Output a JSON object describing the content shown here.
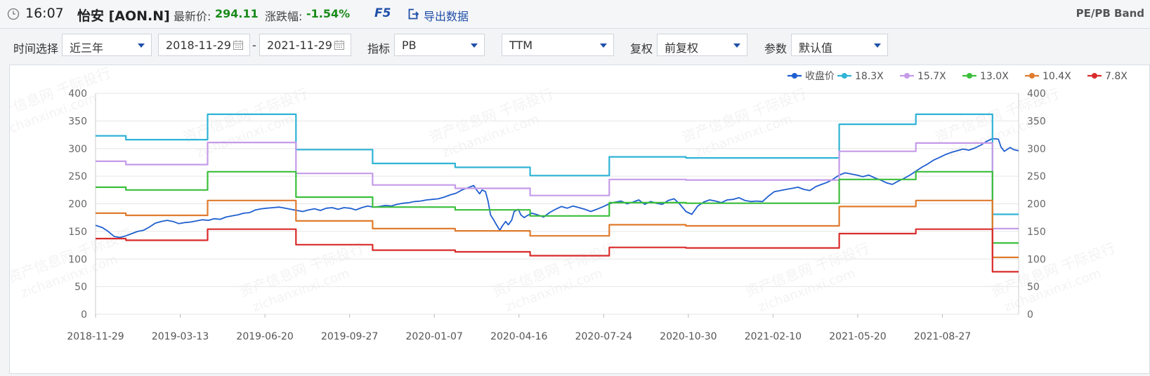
{
  "header": {
    "time": "16:07",
    "stock_name": "怡安 [AON.N]",
    "latest_price_label": "最新价:",
    "latest_price": "294.11",
    "change_label": "涨跌幅:",
    "change_pct": "-1.54%",
    "f5_label": "F5",
    "export_label": "导出数据",
    "module_title": "PE/PB Band"
  },
  "toolbar": {
    "time_select_label": "时间选择",
    "time_select_value": "近三年",
    "start_date": "2018-11-29",
    "date_separator": "-",
    "end_date": "2021-11-29",
    "indicator_label": "指标",
    "indicator_value": "PB",
    "ttm_value": "TTM",
    "adjust_label": "复权",
    "adjust_value": "前复权",
    "param_label": "参数",
    "param_value": "默认值"
  },
  "chart_data": {
    "type": "line",
    "title": "",
    "xlabel": "",
    "ylabel": "",
    "ylim": [
      0,
      400
    ],
    "y_ticks": [
      0,
      50,
      100,
      150,
      200,
      250,
      300,
      350,
      400
    ],
    "x_range": [
      "2018-11-29",
      "2021-11-29"
    ],
    "x_tick_labels": [
      "2018-11-29",
      "2019-03-13",
      "2019-06-20",
      "2019-09-27",
      "2020-01-07",
      "2020-04-16",
      "2020-07-24",
      "2020-10-30",
      "2021-02-10",
      "2021-05-20",
      "2021-08-27"
    ],
    "dual_y_axis": true,
    "grid": "horizontal",
    "legend_position": "top-right",
    "series": [
      {
        "name": "收盘价",
        "color": "#1f5fd0",
        "points": [
          [
            "2018-11-29",
            161
          ],
          [
            "2018-12-07",
            157
          ],
          [
            "2018-12-14",
            150
          ],
          [
            "2018-12-21",
            141
          ],
          [
            "2018-12-28",
            139
          ],
          [
            "2019-01-04",
            142
          ],
          [
            "2019-01-11",
            146
          ],
          [
            "2019-01-18",
            150
          ],
          [
            "2019-01-25",
            152
          ],
          [
            "2019-02-01",
            158
          ],
          [
            "2019-02-08",
            165
          ],
          [
            "2019-02-15",
            168
          ],
          [
            "2019-02-22",
            170
          ],
          [
            "2019-03-01",
            168
          ],
          [
            "2019-03-08",
            164
          ],
          [
            "2019-03-15",
            166
          ],
          [
            "2019-03-22",
            167
          ],
          [
            "2019-03-29",
            169
          ],
          [
            "2019-04-05",
            171
          ],
          [
            "2019-04-12",
            170
          ],
          [
            "2019-04-19",
            173
          ],
          [
            "2019-04-26",
            172
          ],
          [
            "2019-05-03",
            176
          ],
          [
            "2019-05-10",
            178
          ],
          [
            "2019-05-17",
            180
          ],
          [
            "2019-05-24",
            183
          ],
          [
            "2019-05-31",
            184
          ],
          [
            "2019-06-07",
            189
          ],
          [
            "2019-06-14",
            191
          ],
          [
            "2019-06-20",
            192
          ],
          [
            "2019-06-28",
            193
          ],
          [
            "2019-07-05",
            194
          ],
          [
            "2019-07-12",
            192
          ],
          [
            "2019-07-19",
            190
          ],
          [
            "2019-07-26",
            188
          ],
          [
            "2019-08-02",
            186
          ],
          [
            "2019-08-09",
            189
          ],
          [
            "2019-08-16",
            191
          ],
          [
            "2019-08-23",
            188
          ],
          [
            "2019-08-30",
            192
          ],
          [
            "2019-09-06",
            193
          ],
          [
            "2019-09-13",
            190
          ],
          [
            "2019-09-20",
            193
          ],
          [
            "2019-09-27",
            192
          ],
          [
            "2019-10-04",
            189
          ],
          [
            "2019-10-11",
            193
          ],
          [
            "2019-10-18",
            196
          ],
          [
            "2019-10-25",
            194
          ],
          [
            "2019-11-01",
            195
          ],
          [
            "2019-11-08",
            197
          ],
          [
            "2019-11-15",
            196
          ],
          [
            "2019-11-22",
            199
          ],
          [
            "2019-11-29",
            201
          ],
          [
            "2019-12-06",
            202
          ],
          [
            "2019-12-13",
            204
          ],
          [
            "2019-12-20",
            205
          ],
          [
            "2019-12-27",
            207
          ],
          [
            "2020-01-03",
            208
          ],
          [
            "2020-01-10",
            209
          ],
          [
            "2020-01-17",
            212
          ],
          [
            "2020-01-24",
            216
          ],
          [
            "2020-01-31",
            219
          ],
          [
            "2020-02-07",
            225
          ],
          [
            "2020-02-14",
            229
          ],
          [
            "2020-02-21",
            233
          ],
          [
            "2020-02-24",
            226
          ],
          [
            "2020-02-28",
            218
          ],
          [
            "2020-03-02",
            225
          ],
          [
            "2020-03-06",
            222
          ],
          [
            "2020-03-09",
            205
          ],
          [
            "2020-03-12",
            180
          ],
          [
            "2020-03-16",
            170
          ],
          [
            "2020-03-19",
            162
          ],
          [
            "2020-03-23",
            152
          ],
          [
            "2020-03-26",
            160
          ],
          [
            "2020-03-30",
            168
          ],
          [
            "2020-04-02",
            162
          ],
          [
            "2020-04-06",
            170
          ],
          [
            "2020-04-09",
            186
          ],
          [
            "2020-04-14",
            190
          ],
          [
            "2020-04-17",
            180
          ],
          [
            "2020-04-21",
            175
          ],
          [
            "2020-04-24",
            178
          ],
          [
            "2020-04-30",
            183
          ],
          [
            "2020-05-07",
            180
          ],
          [
            "2020-05-14",
            176
          ],
          [
            "2020-05-21",
            184
          ],
          [
            "2020-05-28",
            190
          ],
          [
            "2020-06-04",
            195
          ],
          [
            "2020-06-11",
            192
          ],
          [
            "2020-06-18",
            196
          ],
          [
            "2020-06-25",
            193
          ],
          [
            "2020-07-02",
            190
          ],
          [
            "2020-07-09",
            186
          ],
          [
            "2020-07-16",
            190
          ],
          [
            "2020-07-24",
            195
          ],
          [
            "2020-07-31",
            200
          ],
          [
            "2020-08-07",
            203
          ],
          [
            "2020-08-14",
            205
          ],
          [
            "2020-08-21",
            200
          ],
          [
            "2020-08-28",
            203
          ],
          [
            "2020-09-04",
            207
          ],
          [
            "2020-09-11",
            199
          ],
          [
            "2020-09-18",
            204
          ],
          [
            "2020-09-25",
            201
          ],
          [
            "2020-10-02",
            199
          ],
          [
            "2020-10-09",
            206
          ],
          [
            "2020-10-16",
            209
          ],
          [
            "2020-10-23",
            199
          ],
          [
            "2020-10-30",
            186
          ],
          [
            "2020-11-06",
            181
          ],
          [
            "2020-11-13",
            196
          ],
          [
            "2020-11-20",
            203
          ],
          [
            "2020-11-27",
            207
          ],
          [
            "2020-12-04",
            205
          ],
          [
            "2020-12-11",
            202
          ],
          [
            "2020-12-18",
            207
          ],
          [
            "2020-12-25",
            208
          ],
          [
            "2021-01-01",
            211
          ],
          [
            "2021-01-08",
            206
          ],
          [
            "2021-01-15",
            204
          ],
          [
            "2021-01-22",
            205
          ],
          [
            "2021-01-29",
            204
          ],
          [
            "2021-02-05",
            214
          ],
          [
            "2021-02-12",
            222
          ],
          [
            "2021-02-19",
            224
          ],
          [
            "2021-02-26",
            226
          ],
          [
            "2021-03-05",
            228
          ],
          [
            "2021-03-12",
            230
          ],
          [
            "2021-03-19",
            226
          ],
          [
            "2021-03-26",
            224
          ],
          [
            "2021-04-02",
            231
          ],
          [
            "2021-04-09",
            235
          ],
          [
            "2021-04-16",
            239
          ],
          [
            "2021-04-23",
            245
          ],
          [
            "2021-04-30",
            252
          ],
          [
            "2021-05-07",
            256
          ],
          [
            "2021-05-14",
            254
          ],
          [
            "2021-05-21",
            252
          ],
          [
            "2021-05-28",
            249
          ],
          [
            "2021-06-04",
            252
          ],
          [
            "2021-06-11",
            247
          ],
          [
            "2021-06-18",
            243
          ],
          [
            "2021-06-25",
            238
          ],
          [
            "2021-07-02",
            235
          ],
          [
            "2021-07-09",
            241
          ],
          [
            "2021-07-16",
            246
          ],
          [
            "2021-07-23",
            252
          ],
          [
            "2021-07-30",
            259
          ],
          [
            "2021-08-06",
            266
          ],
          [
            "2021-08-13",
            272
          ],
          [
            "2021-08-20",
            279
          ],
          [
            "2021-08-27",
            284
          ],
          [
            "2021-09-03",
            289
          ],
          [
            "2021-09-10",
            293
          ],
          [
            "2021-09-17",
            296
          ],
          [
            "2021-09-24",
            299
          ],
          [
            "2021-10-01",
            297
          ],
          [
            "2021-10-08",
            301
          ],
          [
            "2021-10-15",
            306
          ],
          [
            "2021-10-22",
            313
          ],
          [
            "2021-10-29",
            318
          ],
          [
            "2021-11-05",
            317
          ],
          [
            "2021-11-08",
            303
          ],
          [
            "2021-11-12",
            295
          ],
          [
            "2021-11-16",
            299
          ],
          [
            "2021-11-19",
            302
          ],
          [
            "2021-11-23",
            298
          ],
          [
            "2021-11-29",
            296
          ]
        ]
      },
      {
        "name": "18.3X",
        "color": "#2fb3d6",
        "step": true,
        "points": [
          [
            "2018-11-29",
            323
          ],
          [
            "2019-01-04",
            316
          ],
          [
            "2019-04-11",
            362
          ],
          [
            "2019-07-25",
            298
          ],
          [
            "2019-10-24",
            273
          ],
          [
            "2020-01-30",
            266
          ],
          [
            "2020-04-28",
            251
          ],
          [
            "2020-07-31",
            285
          ],
          [
            "2020-10-30",
            283
          ],
          [
            "2021-02-05",
            283
          ],
          [
            "2021-04-30",
            344
          ],
          [
            "2021-07-30",
            362
          ],
          [
            "2021-10-29",
            181
          ],
          [
            "2021-11-29",
            181
          ]
        ]
      },
      {
        "name": "15.7X",
        "color": "#c59be8",
        "step": true,
        "points": [
          [
            "2018-11-29",
            277
          ],
          [
            "2019-01-04",
            271
          ],
          [
            "2019-04-11",
            311
          ],
          [
            "2019-07-25",
            255
          ],
          [
            "2019-10-24",
            234
          ],
          [
            "2020-01-30",
            228
          ],
          [
            "2020-04-28",
            215
          ],
          [
            "2020-07-31",
            244
          ],
          [
            "2020-10-30",
            243
          ],
          [
            "2021-02-05",
            243
          ],
          [
            "2021-04-30",
            295
          ],
          [
            "2021-07-30",
            310
          ],
          [
            "2021-10-29",
            155
          ],
          [
            "2021-11-29",
            155
          ]
        ]
      },
      {
        "name": "13.0X",
        "color": "#3bbf3b",
        "step": true,
        "points": [
          [
            "2018-11-29",
            230
          ],
          [
            "2019-01-04",
            225
          ],
          [
            "2019-04-11",
            258
          ],
          [
            "2019-07-25",
            212
          ],
          [
            "2019-10-24",
            194
          ],
          [
            "2020-01-30",
            189
          ],
          [
            "2020-04-28",
            178
          ],
          [
            "2020-07-31",
            202
          ],
          [
            "2020-10-30",
            201
          ],
          [
            "2021-02-05",
            201
          ],
          [
            "2021-04-30",
            244
          ],
          [
            "2021-07-30",
            258
          ],
          [
            "2021-10-29",
            129
          ],
          [
            "2021-11-29",
            129
          ]
        ]
      },
      {
        "name": "10.4X",
        "color": "#e07b2e",
        "step": true,
        "points": [
          [
            "2018-11-29",
            183
          ],
          [
            "2019-01-04",
            179
          ],
          [
            "2019-04-11",
            206
          ],
          [
            "2019-07-25",
            169
          ],
          [
            "2019-10-24",
            155
          ],
          [
            "2020-01-30",
            151
          ],
          [
            "2020-04-28",
            142
          ],
          [
            "2020-07-31",
            162
          ],
          [
            "2020-10-30",
            160
          ],
          [
            "2021-02-05",
            160
          ],
          [
            "2021-04-30",
            195
          ],
          [
            "2021-07-30",
            206
          ],
          [
            "2021-10-29",
            103
          ],
          [
            "2021-11-29",
            103
          ]
        ]
      },
      {
        "name": "7.8X",
        "color": "#d92b2b",
        "step": true,
        "points": [
          [
            "2018-11-29",
            137
          ],
          [
            "2019-01-04",
            134
          ],
          [
            "2019-04-11",
            154
          ],
          [
            "2019-07-25",
            126
          ],
          [
            "2019-10-24",
            116
          ],
          [
            "2020-01-30",
            113
          ],
          [
            "2020-04-28",
            106
          ],
          [
            "2020-07-31",
            121
          ],
          [
            "2020-10-30",
            120
          ],
          [
            "2021-02-05",
            120
          ],
          [
            "2021-04-30",
            146
          ],
          [
            "2021-07-30",
            154
          ],
          [
            "2021-10-29",
            77
          ],
          [
            "2021-11-29",
            77
          ]
        ]
      }
    ]
  },
  "watermark": {
    "text_cn": "资产信息网 千际投行",
    "text_en": "zichanxinxi.com"
  },
  "colors": {
    "accent_blue": "#1f4fa8",
    "price_green": "#1a8a1a"
  }
}
